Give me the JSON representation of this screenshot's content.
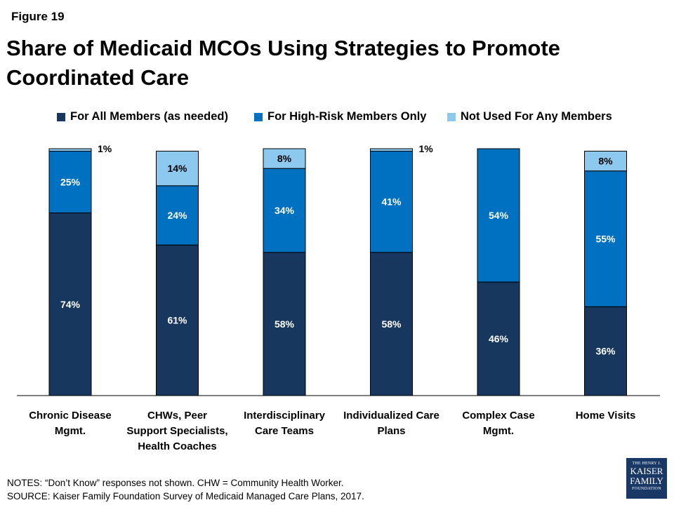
{
  "figure_label": "Figure 19",
  "colors": {
    "all_members": "#17375e",
    "high_risk": "#0070c0",
    "not_used": "#8dc8ef"
  },
  "logo": {
    "line1": "THE HENRY J.",
    "line2": "KAISER",
    "line3": "FAMILY",
    "line4": "FOUNDATION"
  },
  "notes": {
    "line1": "NOTES: “Don’t Know” responses not shown. CHW = Community Health Worker.",
    "line2": "SOURCE: Kaiser Family Foundation Survey of Medicaid Managed Care Plans, 2017."
  },
  "chart_data": {
    "type": "bar",
    "stacked": true,
    "title": "Share of Medicaid MCOs Using Strategies to Promote Coordinated Care",
    "legend_position": "top",
    "grid": false,
    "ylim": [
      0,
      100
    ],
    "categories": [
      [
        "Chronic Disease",
        "Mgmt."
      ],
      [
        "CHWs, Peer",
        "Support Specialists,",
        "Health Coaches"
      ],
      [
        "Interdisciplinary",
        "Care Teams"
      ],
      [
        "Individualized Care",
        "Plans"
      ],
      [
        "Complex Case",
        "Mgmt."
      ],
      [
        "Home Visits"
      ]
    ],
    "series": [
      {
        "name": "For All Members (as needed)",
        "values": [
          74,
          61,
          58,
          58,
          46,
          36
        ],
        "labels": [
          "74%",
          "61%",
          "58%",
          "58%",
          "46%",
          "36%"
        ]
      },
      {
        "name": "For High-Risk Members Only",
        "values": [
          25,
          24,
          34,
          41,
          54,
          55
        ],
        "labels": [
          "25%",
          "24%",
          "34%",
          "41%",
          "54%",
          "55%"
        ]
      },
      {
        "name": "Not Used For Any Members",
        "values": [
          1,
          14,
          8,
          1,
          0,
          8
        ],
        "labels": [
          "1%",
          "14%",
          "8%",
          "1%",
          "",
          "8%"
        ]
      }
    ]
  }
}
